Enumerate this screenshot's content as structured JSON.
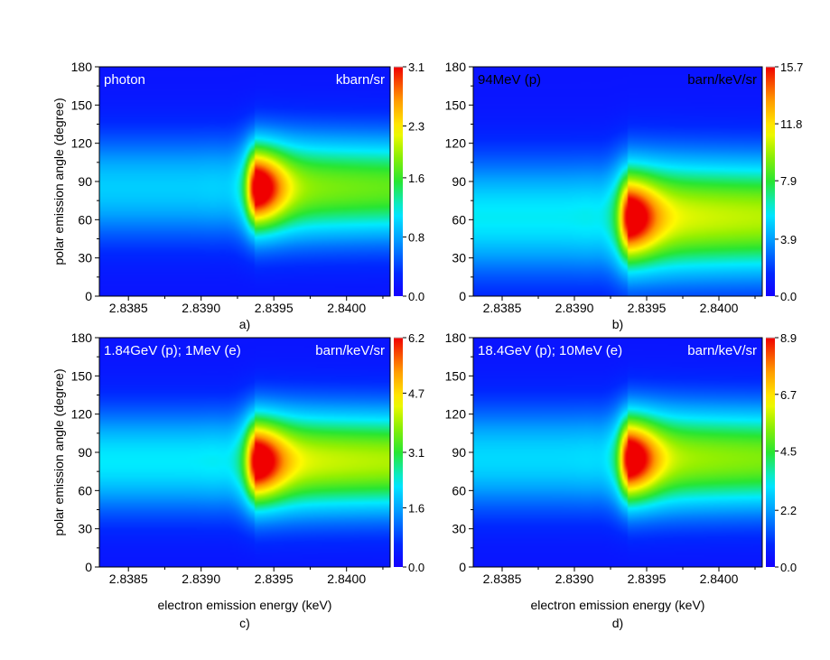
{
  "chart_data": [
    {
      "type": "heatmap",
      "panel_label": "a)",
      "annotation_left": "photon",
      "annotation_right": "kbarn/sr",
      "xlabel": "",
      "ylabel": "polar emission angle (degree)",
      "xlim": [
        2.8383,
        2.8403
      ],
      "ylim": [
        0,
        180
      ],
      "xticks": [
        "2.8385",
        "2.8390",
        "2.8395",
        "2.8400"
      ],
      "yticks": [
        "0",
        "30",
        "60",
        "90",
        "120",
        "150",
        "180"
      ],
      "colorbar": {
        "min": 0.0,
        "max": 3.1,
        "ticks": [
          "0.0",
          "0.8",
          "1.6",
          "2.3",
          "3.1"
        ]
      },
      "features": {
        "background_peak": 1.5,
        "background_peak_angle": 85,
        "background_width": 40,
        "resonance_energy": 2.83937,
        "resonance_peak": 3.1,
        "resonance_angle": 85
      }
    },
    {
      "type": "heatmap",
      "panel_label": "b)",
      "annotation_left": "94MeV (p)",
      "annotation_right": "barn/keV/sr",
      "xlabel": "",
      "ylabel": "",
      "xlim": [
        2.8383,
        2.8403
      ],
      "ylim": [
        0,
        180
      ],
      "xticks": [
        "2.8385",
        "2.8390",
        "2.8395",
        "2.8400"
      ],
      "yticks": [
        "0",
        "30",
        "60",
        "90",
        "120",
        "150",
        "180"
      ],
      "colorbar": {
        "min": 0.0,
        "max": 15.7,
        "ticks": [
          "0.0",
          "3.9",
          "7.9",
          "11.8",
          "15.7"
        ]
      },
      "features": {
        "background_peak": 9.0,
        "background_peak_angle": 62,
        "background_width": 45,
        "resonance_energy": 2.83937,
        "resonance_peak": 15.7,
        "resonance_angle": 62
      }
    },
    {
      "type": "heatmap",
      "panel_label": "c)",
      "annotation_left": "1.84GeV (p); 1MeV (e)",
      "annotation_right": "barn/keV/sr",
      "xlabel": "electron emission energy (keV)",
      "ylabel": "polar emission angle (degree)",
      "xlim": [
        2.8383,
        2.8403
      ],
      "ylim": [
        0,
        180
      ],
      "xticks": [
        "2.8385",
        "2.8390",
        "2.8395",
        "2.8400"
      ],
      "yticks": [
        "0",
        "30",
        "60",
        "90",
        "120",
        "150",
        "180"
      ],
      "colorbar": {
        "min": 0.0,
        "max": 6.2,
        "ticks": [
          "0.0",
          "1.6",
          "3.1",
          "4.7",
          "6.2"
        ]
      },
      "features": {
        "background_peak": 3.5,
        "background_peak_angle": 83,
        "background_width": 40,
        "resonance_energy": 2.83937,
        "resonance_peak": 6.2,
        "resonance_angle": 83
      }
    },
    {
      "type": "heatmap",
      "panel_label": "d)",
      "annotation_left": "18.4GeV (p); 10MeV (e)",
      "annotation_right": "barn/keV/sr",
      "xlabel": "electron emission energy (keV)",
      "ylabel": "",
      "xlim": [
        2.8383,
        2.8403
      ],
      "ylim": [
        0,
        180
      ],
      "xticks": [
        "2.8385",
        "2.8390",
        "2.8395",
        "2.8400"
      ],
      "yticks": [
        "0",
        "30",
        "60",
        "90",
        "120",
        "150",
        "180"
      ],
      "colorbar": {
        "min": 0.0,
        "max": 8.9,
        "ticks": [
          "0.0",
          "2.2",
          "4.5",
          "6.7",
          "8.9"
        ]
      },
      "features": {
        "background_peak": 4.6,
        "background_peak_angle": 85,
        "background_width": 40,
        "resonance_energy": 2.83937,
        "resonance_peak": 8.9,
        "resonance_angle": 85
      }
    }
  ]
}
